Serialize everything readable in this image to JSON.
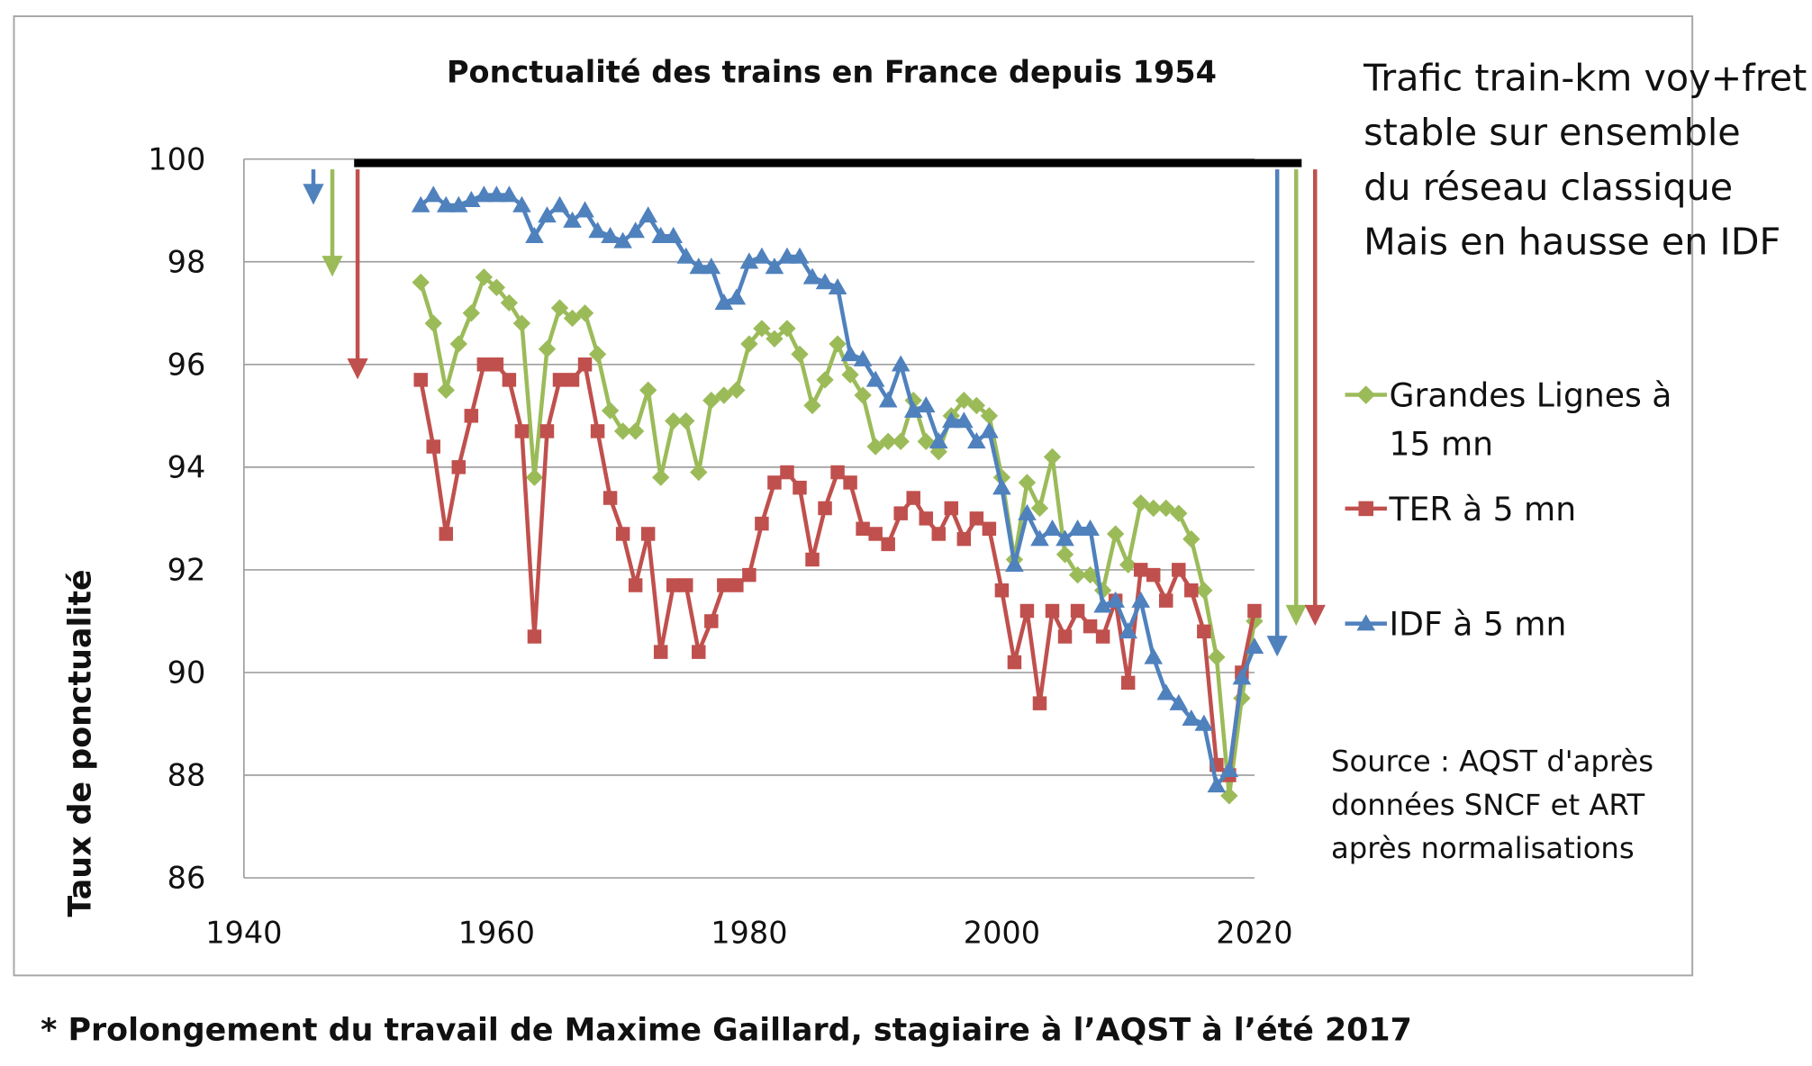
{
  "chart_data": {
    "type": "line",
    "title": "Ponctualité des trains en France depuis 1954",
    "xlabel": "",
    "ylabel": "Taux de ponctualité",
    "xlim": [
      1940,
      2020
    ],
    "ylim": [
      86,
      100
    ],
    "x_ticks": [
      "1940",
      "1960",
      "1980",
      "2000",
      "2020"
    ],
    "y_ticks": [
      "86",
      "88",
      "90",
      "92",
      "94",
      "96",
      "98",
      "100"
    ],
    "grid": true,
    "legend_position": "right",
    "x": [
      1954,
      1955,
      1956,
      1957,
      1958,
      1959,
      1960,
      1961,
      1962,
      1963,
      1964,
      1965,
      1966,
      1967,
      1968,
      1969,
      1970,
      1971,
      1972,
      1973,
      1974,
      1975,
      1976,
      1977,
      1978,
      1979,
      1980,
      1981,
      1982,
      1983,
      1984,
      1985,
      1986,
      1987,
      1988,
      1989,
      1990,
      1991,
      1992,
      1993,
      1994,
      1995,
      1996,
      1997,
      1998,
      1999,
      2000,
      2001,
      2002,
      2003,
      2004,
      2005,
      2006,
      2007,
      2008,
      2009,
      2010,
      2011,
      2012,
      2013,
      2014,
      2015,
      2016,
      2017,
      2018,
      2019,
      2020
    ],
    "series": [
      {
        "name": "Grandes Lignes à 15 mn",
        "legend_lines": [
          "Grandes Lignes à",
          "15 mn"
        ],
        "color": "#9BBB59",
        "marker": "diamond",
        "values": [
          97.6,
          96.8,
          95.5,
          96.4,
          97.0,
          97.7,
          97.5,
          97.2,
          96.8,
          93.8,
          96.3,
          97.1,
          96.9,
          97.0,
          96.2,
          95.1,
          94.7,
          94.7,
          95.5,
          93.8,
          94.9,
          94.9,
          93.9,
          95.3,
          95.4,
          95.5,
          96.4,
          96.7,
          96.5,
          96.7,
          96.2,
          95.2,
          95.7,
          96.4,
          95.8,
          95.4,
          94.4,
          94.5,
          94.5,
          95.3,
          94.5,
          94.3,
          95.0,
          95.3,
          95.2,
          95.0,
          93.8,
          92.2,
          93.7,
          93.2,
          94.2,
          92.3,
          91.9,
          91.9,
          91.6,
          92.7,
          92.1,
          93.3,
          93.2,
          93.2,
          93.1,
          92.6,
          91.6,
          90.3,
          87.6,
          89.5,
          91.0
        ]
      },
      {
        "name": "TER à 5 mn",
        "legend_lines": [
          "TER à 5 mn"
        ],
        "color": "#C0504D",
        "marker": "square",
        "values": [
          95.7,
          94.4,
          92.7,
          94.0,
          95.0,
          96.0,
          96.0,
          95.7,
          94.7,
          90.7,
          94.7,
          95.7,
          95.7,
          96.0,
          94.7,
          93.4,
          92.7,
          91.7,
          92.7,
          90.4,
          91.7,
          91.7,
          90.4,
          91.0,
          91.7,
          91.7,
          91.9,
          92.9,
          93.7,
          93.9,
          93.6,
          92.2,
          93.2,
          93.9,
          93.7,
          92.8,
          92.7,
          92.5,
          93.1,
          93.4,
          93.0,
          92.7,
          93.2,
          92.6,
          93.0,
          92.8,
          91.6,
          90.2,
          91.2,
          89.4,
          91.2,
          90.7,
          91.2,
          90.9,
          90.7,
          91.4,
          89.8,
          92.0,
          91.9,
          91.4,
          92.0,
          91.6,
          90.8,
          88.2,
          88.0,
          90.0,
          91.2
        ]
      },
      {
        "name": "IDF à 5 mn",
        "legend_lines": [
          "IDF à 5 mn"
        ],
        "color": "#4F81BD",
        "marker": "triangle",
        "values": [
          99.1,
          99.3,
          99.1,
          99.1,
          99.2,
          99.3,
          99.3,
          99.3,
          99.1,
          98.5,
          98.9,
          99.1,
          98.8,
          99.0,
          98.6,
          98.5,
          98.4,
          98.6,
          98.9,
          98.5,
          98.5,
          98.1,
          97.9,
          97.9,
          97.2,
          97.3,
          98.0,
          98.1,
          97.9,
          98.1,
          98.1,
          97.7,
          97.6,
          97.5,
          96.2,
          96.1,
          95.7,
          95.3,
          96.0,
          95.1,
          95.2,
          94.5,
          94.9,
          94.9,
          94.5,
          94.7,
          93.6,
          92.1,
          93.1,
          92.6,
          92.8,
          92.6,
          92.8,
          92.8,
          91.3,
          91.4,
          90.8,
          91.4,
          90.3,
          89.6,
          89.4,
          89.1,
          89.0,
          87.8,
          88.1,
          89.9,
          90.5
        ]
      }
    ],
    "annotations": {
      "reference_line": {
        "value": 99.9,
        "from_year": 1949,
        "to_year": 2023,
        "color": "#000000"
      },
      "drop_arrows": [
        {
          "series": "IDF à 5 mn",
          "year": 1945.5,
          "from": 99.8,
          "to": 99.2,
          "color": "#4F81BD"
        },
        {
          "series": "Grandes Lignes à 15 mn",
          "year": 1947,
          "from": 99.8,
          "to": 97.8,
          "color": "#9BBB59"
        },
        {
          "series": "TER à 5 mn",
          "year": 1949,
          "from": 99.8,
          "to": 95.8,
          "color": "#C0504D"
        },
        {
          "series": "IDF à 5 mn",
          "year": 2021.8,
          "from": 99.8,
          "to": 90.4,
          "color": "#4F81BD"
        },
        {
          "series": "Grandes Lignes à 15 mn",
          "year": 2023.3,
          "from": 99.8,
          "to": 91.0,
          "color": "#9BBB59"
        },
        {
          "series": "TER à 5 mn",
          "year": 2024.8,
          "from": 99.8,
          "to": 91.0,
          "color": "#C0504D"
        }
      ]
    },
    "side_note": [
      "Trafic train-km voy+fret",
      "stable sur ensemble",
      "du réseau classique",
      "Mais en hausse en IDF"
    ],
    "source": [
      "Source : AQST d'après",
      "données SNCF et ART",
      "après  normalisations"
    ]
  },
  "footnote": "* Prolongement du travail de Maxime Gaillard, stagiaire à l’AQST à l’été 2017"
}
